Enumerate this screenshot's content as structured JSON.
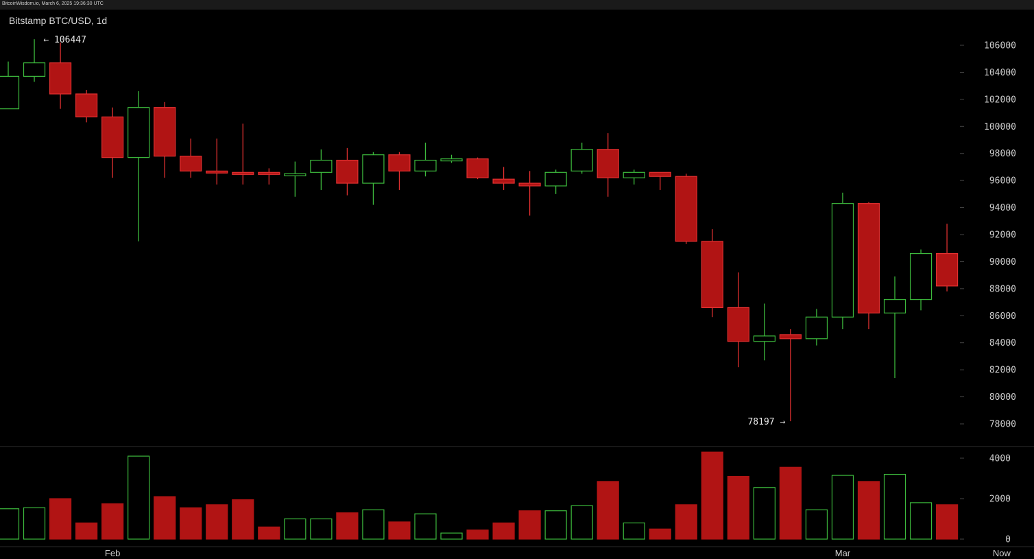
{
  "header": {
    "timestamp": "BitcoinWisdom.io, March 6, 2025 19:36:30 UTC",
    "title": "Bitstamp BTC/USD, 1d"
  },
  "colors": {
    "up": "#3dbb3d",
    "down": "#b11414",
    "down_border": "#e03030",
    "background": "#000000",
    "grid_tick": "#444444",
    "separator": "#2e2e2e"
  },
  "chart_data": {
    "type": "candlestick",
    "price_axis": {
      "ylim": [
        76600,
        107600
      ],
      "ticks": [
        "106000",
        "104000",
        "102000",
        "100000",
        "98000",
        "96000",
        "94000",
        "92000",
        "90000",
        "88000",
        "86000",
        "84000",
        "82000",
        "80000",
        "78000"
      ]
    },
    "volume_axis": {
      "ylim": [
        0,
        4600
      ],
      "ticks": [
        "4000",
        "2000",
        "0"
      ]
    },
    "x_labels": [
      {
        "label": "Feb",
        "index": 4
      },
      {
        "label": "Mar",
        "index": 32
      },
      {
        "label": "Now",
        "index": 38.1
      }
    ],
    "annotations": [
      {
        "text": "← 106447",
        "index": 1.35,
        "value": 106447
      },
      {
        "text": "78197 →",
        "index": 29.8,
        "value": 78197
      }
    ],
    "candles": [
      {
        "o": 101300,
        "h": 104800,
        "l": 101300,
        "c": 103700,
        "v": 1500
      },
      {
        "o": 103700,
        "h": 106447,
        "l": 103300,
        "c": 104700,
        "v": 1550
      },
      {
        "o": 104700,
        "h": 106200,
        "l": 101300,
        "c": 102400,
        "v": 2000
      },
      {
        "o": 102400,
        "h": 102700,
        "l": 100300,
        "c": 100700,
        "v": 800
      },
      {
        "o": 100700,
        "h": 101400,
        "l": 96200,
        "c": 97700,
        "v": 1750
      },
      {
        "o": 97700,
        "h": 102600,
        "l": 91500,
        "c": 101400,
        "v": 4100
      },
      {
        "o": 101400,
        "h": 101800,
        "l": 96200,
        "c": 97800,
        "v": 2100
      },
      {
        "o": 97800,
        "h": 99100,
        "l": 96200,
        "c": 96700,
        "v": 1550
      },
      {
        "o": 96700,
        "h": 99100,
        "l": 95700,
        "c": 96600,
        "v": 1700
      },
      {
        "o": 96600,
        "h": 100200,
        "l": 95700,
        "c": 96500,
        "v": 1950
      },
      {
        "o": 96600,
        "h": 96900,
        "l": 95700,
        "c": 96500,
        "v": 600
      },
      {
        "o": 96400,
        "h": 97400,
        "l": 94800,
        "c": 96500,
        "v": 1000
      },
      {
        "o": 96600,
        "h": 98300,
        "l": 95300,
        "c": 97500,
        "v": 1000
      },
      {
        "o": 97500,
        "h": 98400,
        "l": 94900,
        "c": 95800,
        "v": 1300
      },
      {
        "o": 95800,
        "h": 98100,
        "l": 94200,
        "c": 97900,
        "v": 1450
      },
      {
        "o": 97900,
        "h": 98100,
        "l": 95300,
        "c": 96700,
        "v": 850
      },
      {
        "o": 96700,
        "h": 98800,
        "l": 96300,
        "c": 97500,
        "v": 1250
      },
      {
        "o": 97500,
        "h": 97900,
        "l": 97300,
        "c": 97600,
        "v": 300
      },
      {
        "o": 97600,
        "h": 97700,
        "l": 96100,
        "c": 96200,
        "v": 450
      },
      {
        "o": 96100,
        "h": 97000,
        "l": 95300,
        "c": 95800,
        "v": 800
      },
      {
        "o": 95800,
        "h": 96700,
        "l": 93400,
        "c": 95600,
        "v": 1400
      },
      {
        "o": 95600,
        "h": 96800,
        "l": 95000,
        "c": 96600,
        "v": 1400
      },
      {
        "o": 96700,
        "h": 98800,
        "l": 96500,
        "c": 98300,
        "v": 1650
      },
      {
        "o": 98300,
        "h": 99500,
        "l": 94800,
        "c": 96200,
        "v": 2850
      },
      {
        "o": 96200,
        "h": 96800,
        "l": 95700,
        "c": 96600,
        "v": 800
      },
      {
        "o": 96600,
        "h": 96600,
        "l": 95300,
        "c": 96300,
        "v": 500
      },
      {
        "o": 96300,
        "h": 96500,
        "l": 91300,
        "c": 91500,
        "v": 1700
      },
      {
        "o": 91500,
        "h": 92400,
        "l": 85900,
        "c": 86600,
        "v": 4300
      },
      {
        "o": 86600,
        "h": 89200,
        "l": 82200,
        "c": 84100,
        "v": 3100
      },
      {
        "o": 84100,
        "h": 86900,
        "l": 82700,
        "c": 84500,
        "v": 2550
      },
      {
        "o": 84600,
        "h": 85000,
        "l": 78197,
        "c": 84300,
        "v": 3550
      },
      {
        "o": 84300,
        "h": 86500,
        "l": 83800,
        "c": 85900,
        "v": 1450
      },
      {
        "o": 85900,
        "h": 95100,
        "l": 85000,
        "c": 94300,
        "v": 3150
      },
      {
        "o": 94300,
        "h": 94400,
        "l": 85000,
        "c": 86200,
        "v": 2850
      },
      {
        "o": 86200,
        "h": 88900,
        "l": 81400,
        "c": 87200,
        "v": 3200
      },
      {
        "o": 87200,
        "h": 90900,
        "l": 86400,
        "c": 90600,
        "v": 1800
      },
      {
        "o": 90600,
        "h": 92800,
        "l": 87800,
        "c": 88200,
        "v": 1700
      }
    ]
  }
}
